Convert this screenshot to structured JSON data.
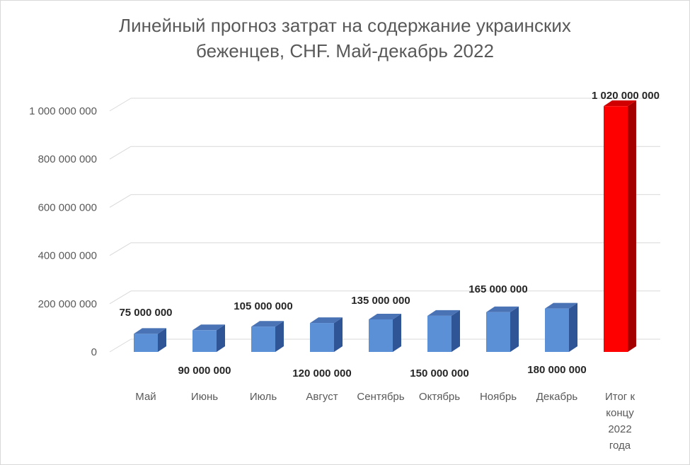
{
  "chart_data": {
    "type": "bar",
    "title_lines": [
      "Линейный прогноз затрат на содержание украинских",
      "беженцев, CHF. Май-декабрь 2022"
    ],
    "categories": [
      [
        "Май"
      ],
      [
        "Июнь"
      ],
      [
        "Июль"
      ],
      [
        "Август"
      ],
      [
        "Сентябрь"
      ],
      [
        "Октябрь"
      ],
      [
        "Ноябрь"
      ],
      [
        "Декабрь"
      ],
      [
        "Итог к",
        "концу",
        "2022",
        "года"
      ]
    ],
    "values": [
      75000000,
      90000000,
      105000000,
      120000000,
      135000000,
      150000000,
      165000000,
      180000000,
      1020000000
    ],
    "data_labels": [
      "75 000 000",
      "90 000 000",
      "105 000 000",
      "120 000 000",
      "135 000 000",
      "150 000 000",
      "165 000 000",
      "180 000 000",
      "1 020 000 000"
    ],
    "yticks": [
      0,
      200000000,
      400000000,
      600000000,
      800000000,
      1000000000
    ],
    "ytick_labels": [
      "0",
      "200 000 000",
      "400 000 000",
      "600 000 000",
      "800 000 000",
      "1 000 000 000"
    ],
    "ylim": [
      0,
      1000000000
    ],
    "grid": true,
    "style": "3d-column",
    "colors": {
      "bar_front": "#5b8fd6",
      "bar_top": "#4a73b5",
      "bar_side": "#2f5597",
      "total_front": "#ff0000",
      "total_top": "#d00000",
      "total_side": "#a50000",
      "grid": "#d9d9d9",
      "text": "#595959"
    }
  }
}
